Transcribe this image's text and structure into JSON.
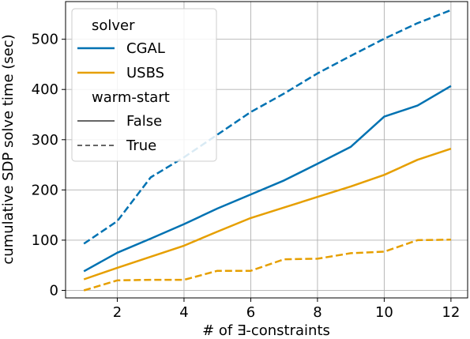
{
  "chart_data": {
    "type": "line",
    "xlabel": "# of ∃-constraints",
    "ylabel": "cumulative SDP solve time (sec)",
    "xlim": [
      0.45,
      12.5
    ],
    "ylim": [
      -15,
      575
    ],
    "xticks": [
      2,
      4,
      6,
      8,
      10,
      12
    ],
    "yticks": [
      0,
      100,
      200,
      300,
      400,
      500
    ],
    "grid": true,
    "legend": {
      "placement": "top-left",
      "sections": [
        {
          "title": "solver",
          "entries": [
            {
              "label": "CGAL",
              "color": "#0072b2",
              "dash": "solid"
            },
            {
              "label": "USBS",
              "color": "#e69f00",
              "dash": "solid"
            }
          ]
        },
        {
          "title": "warm-start",
          "entries": [
            {
              "label": "False",
              "color": "#333333",
              "dash": "solid"
            },
            {
              "label": "True",
              "color": "#333333",
              "dash": "dashed"
            }
          ]
        }
      ]
    },
    "x": [
      1,
      2,
      3,
      4,
      5,
      6,
      7,
      8,
      9,
      10,
      11,
      12
    ],
    "series": [
      {
        "solver": "CGAL",
        "warm_start": "False",
        "color": "#0072b2",
        "dash": "solid",
        "values": [
          38,
          75,
          103,
          132,
          163,
          191,
          219,
          252,
          286,
          346,
          368,
          407
        ]
      },
      {
        "solver": "CGAL",
        "warm_start": "True",
        "color": "#0072b2",
        "dash": "dashed",
        "values": [
          93,
          138,
          225,
          265,
          310,
          355,
          392,
          432,
          467,
          501,
          532,
          558
        ]
      },
      {
        "solver": "USBS",
        "warm_start": "False",
        "color": "#e69f00",
        "dash": "solid",
        "values": [
          22,
          45,
          67,
          89,
          117,
          144,
          165,
          186,
          207,
          230,
          260,
          282
        ]
      },
      {
        "solver": "USBS",
        "warm_start": "True",
        "color": "#e69f00",
        "dash": "dashed",
        "values": [
          0,
          20,
          21,
          21,
          39,
          39,
          62,
          63,
          74,
          77,
          100,
          101
        ]
      }
    ]
  }
}
